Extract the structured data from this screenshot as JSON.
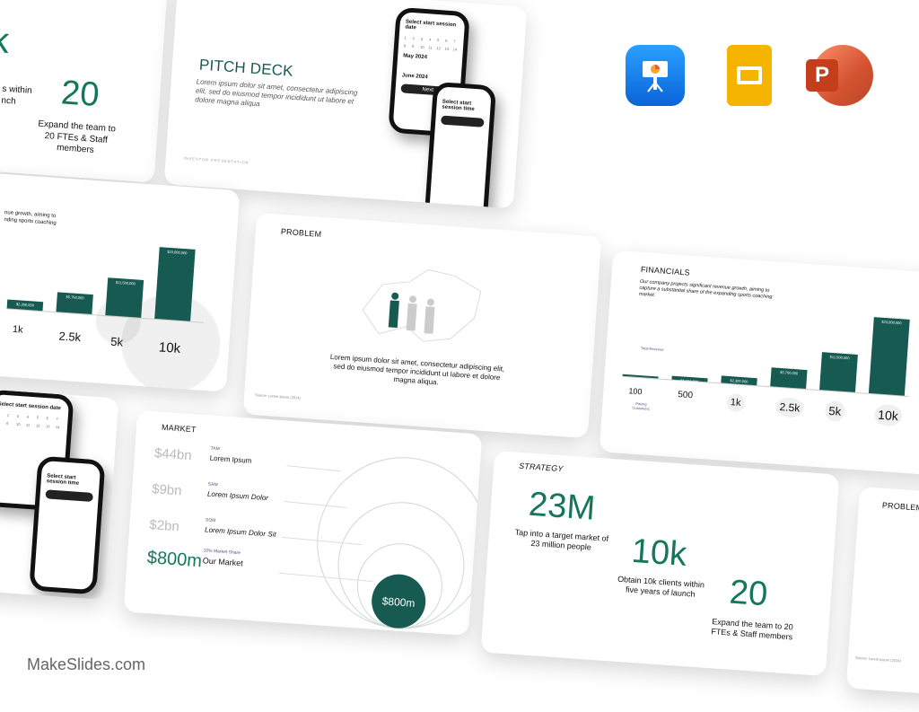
{
  "brand": "MakeSlides.com",
  "apps": [
    {
      "name": "Keynote",
      "color": "#1b8af5"
    },
    {
      "name": "Google Slides",
      "color": "#f4b400"
    },
    {
      "name": "PowerPoint",
      "color": "#d24726"
    }
  ],
  "colors": {
    "accent": "#14775a",
    "bar": "#165a51"
  },
  "strategy": {
    "title": "STRATEGY",
    "stats": [
      {
        "value": "23M",
        "caption": "Tap into a target market of 23 million people"
      },
      {
        "value": "10k",
        "caption": "Obtain 10k clients within five years of launch"
      },
      {
        "value": "20",
        "caption": "Expand the team to 20 FTEs & Staff members"
      }
    ],
    "partial_top": {
      "value_fragment": "k",
      "caption_fragment": "s within\nnch"
    }
  },
  "pitch": {
    "title": "PITCH DECK",
    "body": "Lorem ipsum dolor sit amet, consectetur adipiscing elit, sed do eiusmod tempor incididunt ut labore et dolore magna aliqua",
    "footer": "INVESTOR PRESENTATION"
  },
  "phone": {
    "title1": "Select start session date",
    "month1": "May 2024",
    "month2": "June 2024",
    "title2": "Select start session time",
    "btn": "Next"
  },
  "problem": {
    "title": "PROBLEM",
    "body": "Lorem ipsum dolor sit amet, consectetur adipiscing elit, sed do eiusmod tempor incididunt ut labore et dolore magna aliqua.",
    "source": "Source: Lorem Ipsum (2024)"
  },
  "financials": {
    "title": "FINANCIALS",
    "body": "Our company projects significant revenue growth, aiming to capture a substantial share of the expanding sports coaching market.",
    "revenue_label": "Total Revenue",
    "customers_label": "Paying Customers",
    "partial_body": "nue growth, aiming to\nnding sports coaching",
    "bars": [
      {
        "customers": "100",
        "revenue": "$230,000",
        "share": 0.01
      },
      {
        "customers": "500",
        "revenue": "$1,150,000",
        "share": 0.05
      },
      {
        "customers": "1k",
        "revenue": "$2,300,000",
        "share": 0.1
      },
      {
        "customers": "2.5k",
        "revenue": "$5,750,000",
        "share": 0.25
      },
      {
        "customers": "5k",
        "revenue": "$11,500,000",
        "share": 0.5
      },
      {
        "customers": "10k",
        "revenue": "$23,000,000",
        "share": 1.0
      }
    ]
  },
  "market": {
    "title": "MARKET",
    "rows": [
      {
        "value": "$44bn",
        "tag": "TAM",
        "desc": "Lorem Ipsum"
      },
      {
        "value": "$9bn",
        "tag": "SAM",
        "desc": "Lorem Ipsum Dolor"
      },
      {
        "value": "$2bn",
        "tag": "SOM",
        "desc": "Lorem Ipsum Dolor Sit"
      },
      {
        "value": "$800m",
        "tag": "10% Market Share",
        "desc": "Our Market"
      }
    ],
    "circle_label": "$800m"
  }
}
